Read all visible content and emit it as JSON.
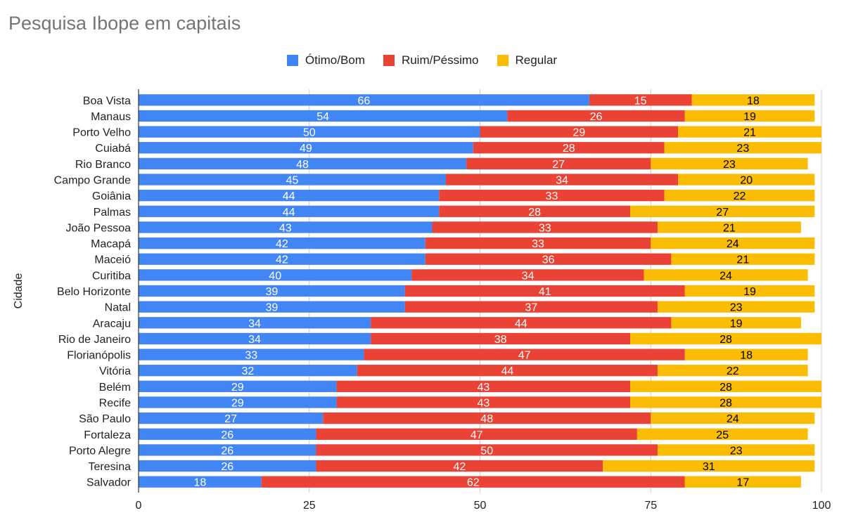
{
  "chart_data": {
    "type": "bar",
    "orientation": "horizontal",
    "stacked": true,
    "title": "Pesquisa Ibope em capitais",
    "ylabel": "Cidade",
    "xlim": [
      0,
      100
    ],
    "xticks": [
      0,
      25,
      50,
      75,
      100
    ],
    "grid": true,
    "legend_position": "top",
    "categories": [
      "Boa Vista",
      "Manaus",
      "Porto Velho",
      "Cuiabá",
      "Rio Branco",
      "Campo Grande",
      "Goiânia",
      "Palmas",
      "João Pessoa",
      "Macapá",
      "Maceió",
      "Curitiba",
      "Belo Horizonte",
      "Natal",
      "Aracaju",
      "Rio de Janeiro",
      "Florianópolis",
      "Vitória",
      "Belém",
      "Recife",
      "São Paulo",
      "Fortaleza",
      "Porto Alegre",
      "Teresina",
      "Salvador"
    ],
    "series": [
      {
        "name": "Ótimo/Bom",
        "color": "#4285f4",
        "label_color": "#ffffff",
        "values": [
          66,
          54,
          50,
          49,
          48,
          45,
          44,
          44,
          43,
          42,
          42,
          40,
          39,
          39,
          34,
          34,
          33,
          32,
          29,
          29,
          27,
          26,
          26,
          26,
          18
        ]
      },
      {
        "name": "Ruim/Péssimo",
        "color": "#ea4335",
        "label_color": "#ffffff",
        "values": [
          15,
          26,
          29,
          28,
          27,
          34,
          33,
          28,
          33,
          33,
          36,
          34,
          41,
          37,
          44,
          38,
          47,
          44,
          43,
          43,
          48,
          47,
          50,
          42,
          62
        ]
      },
      {
        "name": "Regular",
        "color": "#fbbc04",
        "label_color": "#000000",
        "values": [
          18,
          19,
          21,
          23,
          23,
          20,
          22,
          27,
          21,
          24,
          21,
          24,
          19,
          23,
          19,
          28,
          18,
          22,
          28,
          28,
          24,
          25,
          23,
          31,
          17
        ]
      }
    ]
  }
}
